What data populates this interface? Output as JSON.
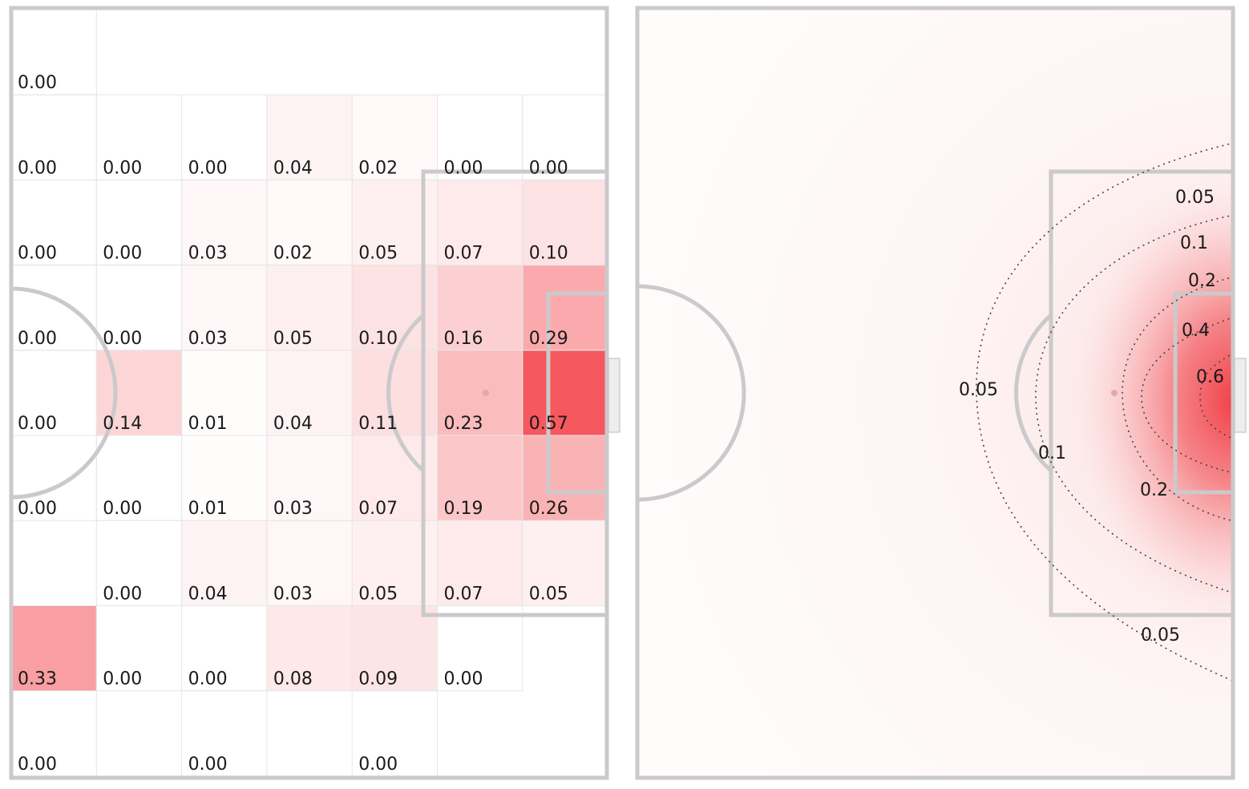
{
  "chart_data": [
    {
      "type": "heatmap",
      "title": "",
      "xlabel": "",
      "ylabel": "",
      "grid": true,
      "background": "football pitch half (attacking third)",
      "color_min": "#ffffff",
      "color_max": "#f44f55",
      "value_range": [
        0,
        0.6
      ],
      "rows": [
        [
          "0.00",
          "",
          "",
          "",
          "",
          "",
          ""
        ],
        [
          "0.00",
          "0.00",
          "0.00",
          "0.04",
          "0.02",
          "0.00",
          "0.00"
        ],
        [
          "0.00",
          "0.00",
          "0.03",
          "0.02",
          "0.05",
          "0.07",
          "0.10"
        ],
        [
          "0.00",
          "0.00",
          "0.03",
          "0.05",
          "0.10",
          "0.16",
          "0.29"
        ],
        [
          "0.00",
          "0.14",
          "0.01",
          "0.04",
          "0.11",
          "0.23",
          "0.57"
        ],
        [
          "0.00",
          "0.00",
          "0.01",
          "0.03",
          "0.07",
          "0.19",
          "0.26"
        ],
        [
          "",
          "0.00",
          "0.04",
          "0.03",
          "0.05",
          "0.07",
          "0.05"
        ],
        [
          "0.33",
          "0.00",
          "0.00",
          "0.08",
          "0.09",
          "0.00",
          ""
        ],
        [
          "0.00",
          "",
          "0.00",
          "",
          "0.00",
          "",
          ""
        ]
      ]
    },
    {
      "type": "heatmap",
      "title": "",
      "xlabel": "",
      "ylabel": "",
      "background": "football pitch half (attacking third)",
      "color_min": "#ffffff",
      "color_max": "#f0383f",
      "contour_levels": [
        "0.05",
        "0.1",
        "0.2",
        "0.4",
        "0.6"
      ],
      "contour_labels": [
        {
          "text": "0.05",
          "level": 0.05
        },
        {
          "text": "0.1",
          "level": 0.1
        },
        {
          "text": "0.2",
          "level": 0.2
        },
        {
          "text": "0.4",
          "level": 0.4
        },
        {
          "text": "0.6",
          "level": 0.6
        },
        {
          "text": "0.05",
          "level": 0.05
        },
        {
          "text": "0.1",
          "level": 0.1
        },
        {
          "text": "0.2",
          "level": 0.2
        },
        {
          "text": "0.05",
          "level": 0.05
        }
      ]
    }
  ]
}
